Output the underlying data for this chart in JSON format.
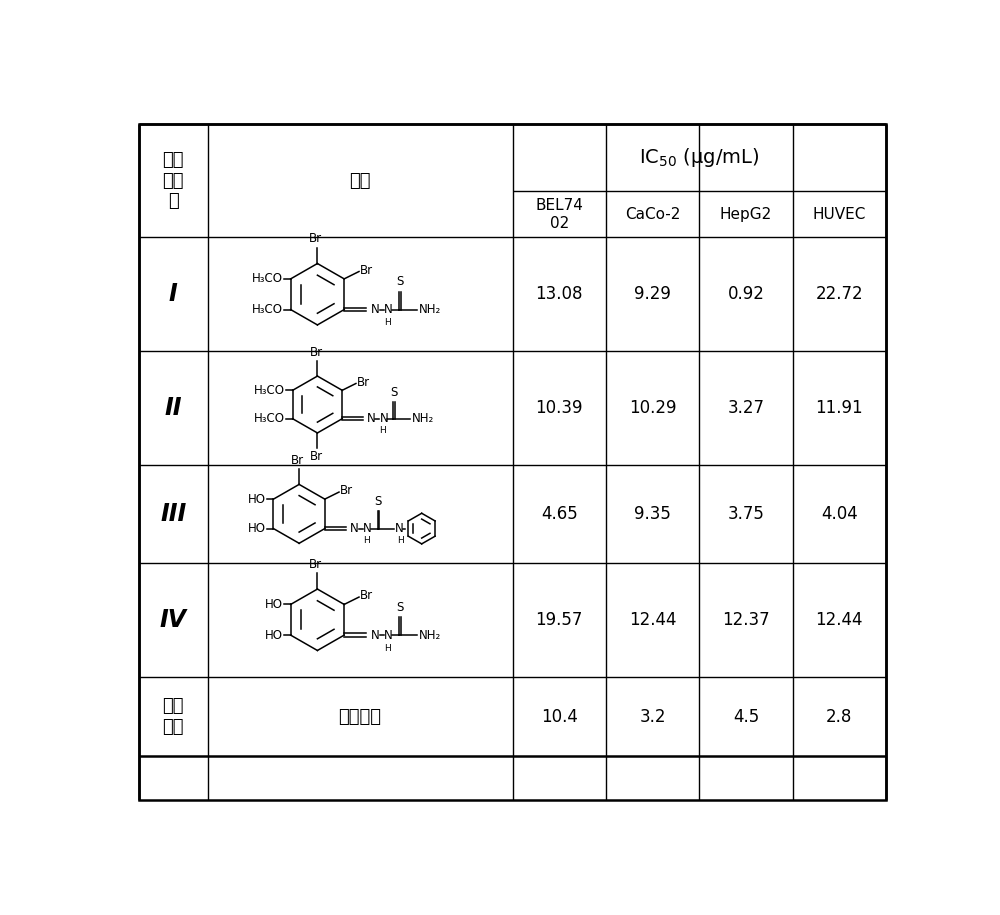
{
  "title": "",
  "compounds": [
    "I",
    "II",
    "III",
    "IV"
  ],
  "compound_last": "阳性\n对照",
  "header_col0": "化合\n物编\n号",
  "header_col1": "结构",
  "header_ic50": "IC",
  "header_ic50_sub": "50",
  "header_ic50_unit": " (μg/mL)",
  "sub_headers": [
    "BEL74\n02",
    "CaCo-2",
    "HepG2",
    "HUVEC"
  ],
  "structure_last": "舒尼替尼",
  "data": [
    [
      13.08,
      9.29,
      0.92,
      22.72
    ],
    [
      10.39,
      10.29,
      3.27,
      11.91
    ],
    [
      4.65,
      9.35,
      3.75,
      4.04
    ],
    [
      19.57,
      12.44,
      12.37,
      12.44
    ],
    [
      10.4,
      3.2,
      4.5,
      2.8
    ]
  ],
  "bg_color": "#ffffff",
  "line_color": "#000000"
}
